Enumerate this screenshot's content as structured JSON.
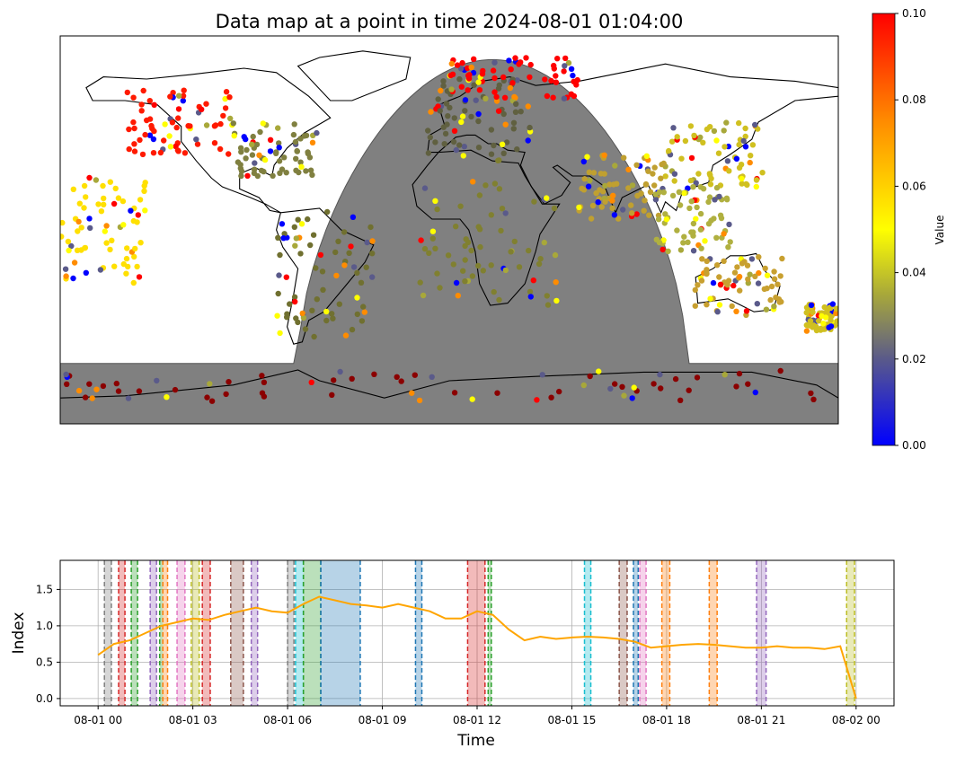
{
  "chart_data": [
    {
      "type": "map",
      "title": "Data map at a point in time 2024-08-01 01:04:00",
      "colorbar": {
        "label": "Value",
        "range": [
          0.0,
          0.1
        ],
        "ticks": [
          "0.00",
          "0.02",
          "0.04",
          "0.06",
          "0.08",
          "0.10"
        ],
        "colors": [
          "#0000ff",
          "#5a5a8a",
          "#a8a83a",
          "#ffff00",
          "#ff8c00",
          "#ff0000"
        ]
      },
      "night_shade_color": "#808080",
      "point_clusters": [
        {
          "region": "north-america-west",
          "lon": [
            -150,
            -100
          ],
          "lat": [
            35,
            65
          ],
          "color": "#ff1a00"
        },
        {
          "region": "north-america-east",
          "lon": [
            -100,
            -60
          ],
          "lat": [
            25,
            50
          ],
          "color": "#808040"
        },
        {
          "region": "europe",
          "lon": [
            -10,
            40
          ],
          "lat": [
            35,
            70
          ],
          "color": "#606040"
        },
        {
          "region": "russia-north",
          "lon": [
            0,
            60
          ],
          "lat": [
            60,
            80
          ],
          "color": "#ff0000"
        },
        {
          "region": "south-america",
          "lon": [
            -80,
            -35
          ],
          "lat": [
            -50,
            10
          ],
          "color": "#707030"
        },
        {
          "region": "africa",
          "lon": [
            -15,
            50
          ],
          "lat": [
            -35,
            35
          ],
          "color": "#808030"
        },
        {
          "region": "east-asia",
          "lon": [
            100,
            145
          ],
          "lat": [
            20,
            50
          ],
          "color": "#d0c020"
        },
        {
          "region": "south-asia",
          "lon": [
            60,
            100
          ],
          "lat": [
            5,
            35
          ],
          "color": "#c0a030"
        },
        {
          "region": "southeast-asia",
          "lon": [
            95,
            130
          ],
          "lat": [
            -10,
            20
          ],
          "color": "#b0b040"
        },
        {
          "region": "australia",
          "lon": [
            113,
            155
          ],
          "lat": [
            -40,
            -12
          ],
          "color": "#c8a030"
        },
        {
          "region": "antarctica",
          "lon": [
            -180,
            180
          ],
          "lat": [
            -80,
            -65
          ],
          "color": "#8b0000"
        },
        {
          "region": "pacific-islands",
          "lon": [
            -180,
            -140
          ],
          "lat": [
            -25,
            25
          ],
          "color": "#ffe000"
        },
        {
          "region": "new-zealand",
          "lon": [
            165,
            180
          ],
          "lat": [
            -47,
            -34
          ],
          "color": "#d0c020"
        }
      ]
    },
    {
      "type": "line",
      "xlabel": "Time",
      "ylabel": "Index",
      "x_ticks": [
        "08-01 00",
        "08-01 03",
        "08-01 06",
        "08-01 09",
        "08-01 12",
        "08-01 15",
        "08-01 18",
        "08-01 21",
        "08-02 00"
      ],
      "y_ticks": [
        "0.0",
        "0.5",
        "1.0",
        "1.5"
      ],
      "xlim_hours": [
        -1.2,
        25.2
      ],
      "ylim": [
        -0.1,
        1.9
      ],
      "grid": true,
      "line_color": "#ffa500",
      "series": [
        {
          "x_hours": [
            0.0,
            0.5,
            1.0,
            1.5,
            2.0,
            2.5,
            3.0,
            3.5,
            4.0,
            4.5,
            5.0,
            5.5,
            6.0,
            6.5,
            7.0,
            7.5,
            8.0,
            8.5,
            9.0,
            9.5,
            10.0,
            10.5,
            11.0,
            11.5,
            12.0,
            12.5,
            13.0,
            13.5,
            14.0,
            14.5,
            15.0,
            15.5,
            16.0,
            16.5,
            17.0,
            17.5,
            18.0,
            18.5,
            19.0,
            19.5,
            20.0,
            20.5,
            21.0,
            21.5,
            22.0,
            22.5,
            23.0,
            23.5,
            24.0
          ],
          "values": [
            0.6,
            0.75,
            0.8,
            0.9,
            1.0,
            1.05,
            1.1,
            1.08,
            1.15,
            1.2,
            1.25,
            1.2,
            1.18,
            1.3,
            1.4,
            1.35,
            1.3,
            1.28,
            1.25,
            1.3,
            1.25,
            1.2,
            1.1,
            1.1,
            1.2,
            1.15,
            0.95,
            0.8,
            0.85,
            0.82,
            0.84,
            0.85,
            0.84,
            0.82,
            0.78,
            0.7,
            0.72,
            0.74,
            0.75,
            0.74,
            0.72,
            0.7,
            0.7,
            0.72,
            0.7,
            0.7,
            0.68,
            0.72,
            0.0
          ]
        }
      ],
      "event_bands": [
        {
          "start": 0.2,
          "end": 0.42,
          "color": "#7f7f7f"
        },
        {
          "start": 0.65,
          "end": 0.85,
          "color": "#d62728"
        },
        {
          "start": 1.05,
          "end": 1.25,
          "color": "#2ca02c"
        },
        {
          "start": 1.65,
          "end": 1.85,
          "color": "#9467bd"
        },
        {
          "start": 1.95,
          "end": 2.05,
          "color": "#2ca02c"
        },
        {
          "start": 2.05,
          "end": 2.2,
          "color": "#ff7f0e"
        },
        {
          "start": 2.5,
          "end": 2.75,
          "color": "#e377c2"
        },
        {
          "start": 2.95,
          "end": 3.2,
          "color": "#bcbd22"
        },
        {
          "start": 3.3,
          "end": 3.55,
          "color": "#d62728"
        },
        {
          "start": 4.2,
          "end": 4.6,
          "color": "#8c564b"
        },
        {
          "start": 4.85,
          "end": 5.05,
          "color": "#9467bd"
        },
        {
          "start": 6.0,
          "end": 6.2,
          "color": "#7f7f7f"
        },
        {
          "start": 6.25,
          "end": 6.5,
          "color": "#17becf"
        },
        {
          "start": 6.5,
          "end": 7.05,
          "color": "#2ca02c"
        },
        {
          "start": 7.05,
          "end": 8.3,
          "color": "#1f77b4"
        },
        {
          "start": 10.05,
          "end": 10.25,
          "color": "#1f77b4"
        },
        {
          "start": 11.7,
          "end": 12.25,
          "color": "#d62728"
        },
        {
          "start": 12.35,
          "end": 12.45,
          "color": "#2ca02c"
        },
        {
          "start": 15.4,
          "end": 15.6,
          "color": "#17becf"
        },
        {
          "start": 16.5,
          "end": 16.75,
          "color": "#8c564b"
        },
        {
          "start": 16.95,
          "end": 17.1,
          "color": "#1f77b4"
        },
        {
          "start": 17.15,
          "end": 17.35,
          "color": "#e377c2"
        },
        {
          "start": 17.85,
          "end": 18.1,
          "color": "#ff7f0e"
        },
        {
          "start": 19.35,
          "end": 19.6,
          "color": "#ff7f0e"
        },
        {
          "start": 20.85,
          "end": 21.15,
          "color": "#9467bd"
        },
        {
          "start": 23.7,
          "end": 23.95,
          "color": "#bcbd22"
        }
      ]
    }
  ]
}
